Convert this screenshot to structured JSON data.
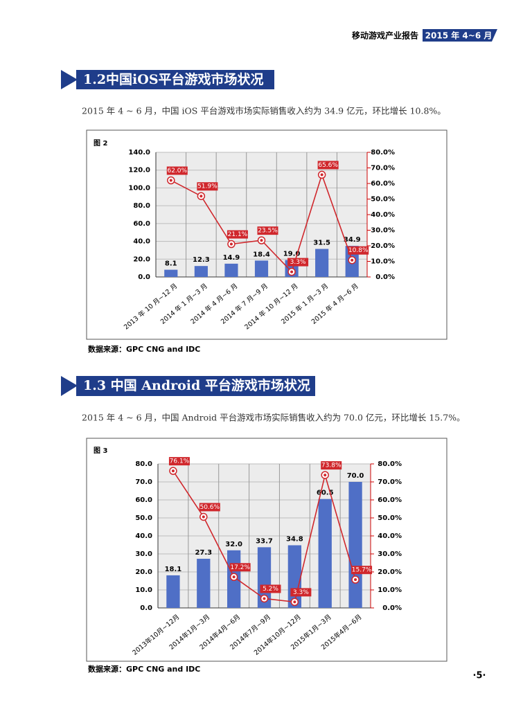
{
  "header": {
    "report": "移动游戏产业报告",
    "period": "2015 年 4~6 月"
  },
  "sections": [
    {
      "title": "1.2中国iOS平台游戏市场状况",
      "text": "2015 年 4 ~ 6 月，中国 iOS 平台游戏市场实际销售收入约为 34.9 亿元，环比增长 10.8%。",
      "figure": "图 2",
      "source": "数据来源：GPC  CNG and IDC"
    },
    {
      "title": "1.3 中国 Android 平台游戏市场状况",
      "text": "2015 年 4 ~ 6 月，中国 Android 平台游戏市场实际销售收入约为 70.0 亿元，环比增长 15.7%。",
      "figure": "图 3",
      "source": "数据来源：GPC  CNG and IDC"
    }
  ],
  "page_number": "·5·",
  "chart_data": [
    {
      "type": "bar-line",
      "categories": [
        "2013 年 10 月~12 月",
        "2014 年 1 月~3 月",
        "2014 年 4 月~6 月",
        "2014 年 7 月~9 月",
        "2014 年 10 月~12 月",
        "2015 年 1 月~3 月",
        "2015 年 4 月~6 月"
      ],
      "series": [
        {
          "color": "#4f6fc6",
          "values": [
            8.1,
            12.3,
            14.9,
            18.4,
            19.0,
            31.5,
            34.9
          ],
          "value_labels": [
            "8.1",
            "12.3",
            "14.9",
            "18.4",
            "19.0",
            "31.5",
            "34.9"
          ]
        },
        {
          "color": "#d0272c",
          "axis": "y2",
          "values": [
            62.0,
            51.9,
            21.1,
            23.5,
            3.3,
            65.6,
            10.8
          ],
          "value_labels": [
            "62.0%",
            "51.9%",
            "21.1%",
            "23.5%",
            "3.3%",
            "65.6%",
            "10.8%"
          ]
        }
      ],
      "ylim": [
        0,
        140
      ],
      "yticks": [
        {
          "value": 0,
          "label": "0.0"
        },
        {
          "value": 20,
          "label": "20.0"
        },
        {
          "value": 40,
          "label": "40.0"
        },
        {
          "value": 60,
          "label": "60.0"
        },
        {
          "value": 80,
          "label": "80.0"
        },
        {
          "value": 100,
          "label": "100.0"
        },
        {
          "value": 120,
          "label": "120.0"
        },
        {
          "value": 140,
          "label": "140.0"
        }
      ],
      "y2lim": [
        0,
        80
      ],
      "y2ticks": [
        {
          "value": 0,
          "label": "0.0%"
        },
        {
          "value": 10,
          "label": "10.0%"
        },
        {
          "value": 20,
          "label": "20.0%"
        },
        {
          "value": 30,
          "label": "30.0%"
        },
        {
          "value": 40,
          "label": "40.0%"
        },
        {
          "value": 50,
          "label": "50.0%"
        },
        {
          "value": 60,
          "label": "60.0%"
        },
        {
          "value": 70,
          "label": "70.0%"
        },
        {
          "value": 80,
          "label": "80.0%"
        }
      ],
      "grid": true
    },
    {
      "type": "bar-line",
      "categories": [
        "2013年10月~12月",
        "2014年1月~3月",
        "2014年4月~6月",
        "2014年7月~9月",
        "2014年10月~12月",
        "2015年1月~3月",
        "2015年4月~6月"
      ],
      "series": [
        {
          "color": "#4f6fc6",
          "values": [
            18.1,
            27.3,
            32.0,
            33.7,
            34.8,
            60.5,
            70.0
          ],
          "value_labels": [
            "18.1",
            "27.3",
            "32.0",
            "33.7",
            "34.8",
            "60.5",
            "70.0"
          ]
        },
        {
          "color": "#d0272c",
          "axis": "y2",
          "values": [
            76.1,
            50.6,
            17.2,
            5.2,
            3.3,
            73.8,
            15.7
          ],
          "value_labels": [
            "76.1%",
            "50.6%",
            "17.2%",
            "5.2%",
            "3.3%",
            "73.8%",
            "15.7%"
          ]
        }
      ],
      "ylim": [
        0,
        80
      ],
      "yticks": [
        {
          "value": 0,
          "label": "0.0"
        },
        {
          "value": 10,
          "label": "10.0"
        },
        {
          "value": 20,
          "label": "20.0"
        },
        {
          "value": 30,
          "label": "30.0"
        },
        {
          "value": 40,
          "label": "40.0"
        },
        {
          "value": 50,
          "label": "50.0"
        },
        {
          "value": 60,
          "label": "60.0"
        },
        {
          "value": 70,
          "label": "70.0"
        },
        {
          "value": 80,
          "label": "80.0"
        }
      ],
      "y2lim": [
        0,
        80
      ],
      "y2ticks": [
        {
          "value": 0,
          "label": "0.0%"
        },
        {
          "value": 10,
          "label": "10.0%"
        },
        {
          "value": 20,
          "label": "20.0%"
        },
        {
          "value": 30,
          "label": "30.0%"
        },
        {
          "value": 40,
          "label": "40.0%"
        },
        {
          "value": 50,
          "label": "50.0%"
        },
        {
          "value": 60,
          "label": "60.0%"
        },
        {
          "value": 70,
          "label": "70.0%"
        },
        {
          "value": 80,
          "label": "80.0%"
        }
      ],
      "grid": true
    }
  ]
}
